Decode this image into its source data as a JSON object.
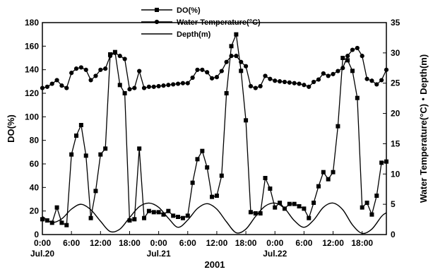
{
  "chart_data": {
    "type": "line",
    "xlabel": "2001",
    "ylabel": "DO(%)",
    "y2label": "Water Temperature(°C)・Depth(m)",
    "ylim": [
      0,
      180
    ],
    "y2lim": [
      0,
      35
    ],
    "yticks": [
      "0",
      "20",
      "40",
      "60",
      "80",
      "100",
      "120",
      "140",
      "160",
      "180"
    ],
    "y2ticks": [
      "0",
      "5",
      "10",
      "15",
      "20",
      "25",
      "30",
      "35"
    ],
    "xlim": [
      0,
      71
    ],
    "xticks": [
      {
        "hour": 0,
        "label": "0:00",
        "sublabel": "Jul.20"
      },
      {
        "hour": 6,
        "label": "6:00",
        "sublabel": ""
      },
      {
        "hour": 12,
        "label": "12:00",
        "sublabel": ""
      },
      {
        "hour": 18,
        "label": "18:00",
        "sublabel": ""
      },
      {
        "hour": 24,
        "label": "0:00",
        "sublabel": "Jul.21"
      },
      {
        "hour": 30,
        "label": "6:00",
        "sublabel": ""
      },
      {
        "hour": 36,
        "label": "12:00",
        "sublabel": ""
      },
      {
        "hour": 42,
        "label": "18:00",
        "sublabel": ""
      },
      {
        "hour": 48,
        "label": "0:00",
        "sublabel": "Jul.22"
      },
      {
        "hour": 54,
        "label": "6:00",
        "sublabel": ""
      },
      {
        "hour": 60,
        "label": "12:00",
        "sublabel": ""
      },
      {
        "hour": 66,
        "label": "18:00",
        "sublabel": ""
      }
    ],
    "legend_position": "top-center",
    "grid": false,
    "series": [
      {
        "name": "DO(%)",
        "axis": "left",
        "marker": "square",
        "x": [
          0,
          1,
          2,
          3,
          4,
          5,
          6,
          7,
          8,
          9,
          10,
          11,
          12,
          13,
          14,
          15,
          16,
          17,
          18,
          19,
          20,
          21,
          22,
          23,
          24,
          25,
          26,
          27,
          28,
          29,
          30,
          31,
          32,
          33,
          34,
          35,
          36,
          37,
          38,
          39,
          40,
          41,
          42,
          43,
          44,
          45,
          46,
          47,
          48,
          49,
          50,
          51,
          52,
          53,
          54,
          55,
          56,
          57,
          58,
          59,
          60,
          61,
          62,
          63,
          64,
          65,
          66,
          67,
          68,
          69,
          70,
          71
        ],
        "values": [
          13,
          12,
          10,
          23,
          10,
          8,
          68,
          84,
          93,
          67,
          14,
          37,
          68,
          73,
          153,
          155,
          127,
          120,
          12,
          13,
          73,
          14,
          20,
          19,
          19,
          17,
          20,
          16,
          15,
          14,
          16,
          44,
          64,
          71,
          57,
          32,
          33,
          50,
          120,
          160,
          170,
          139,
          97,
          19,
          18,
          18,
          48,
          39,
          23,
          27,
          22,
          26,
          26,
          24,
          22,
          14,
          27,
          41,
          53,
          47,
          53,
          92,
          150,
          148,
          139,
          116,
          23,
          27,
          17,
          33,
          61,
          62
        ]
      },
      {
        "name": "Water Temperature(°C)",
        "axis": "right",
        "marker": "circle",
        "x": [
          0,
          1,
          2,
          3,
          4,
          5,
          6,
          7,
          8,
          9,
          10,
          11,
          12,
          13,
          14,
          15,
          16,
          17,
          18,
          19,
          20,
          21,
          22,
          23,
          24,
          25,
          26,
          27,
          28,
          29,
          30,
          31,
          32,
          33,
          34,
          35,
          36,
          37,
          38,
          39,
          40,
          41,
          42,
          43,
          44,
          45,
          46,
          47,
          48,
          49,
          50,
          51,
          52,
          53,
          54,
          55,
          56,
          57,
          58,
          59,
          60,
          61,
          62,
          63,
          64,
          65,
          66,
          67,
          68,
          69,
          70,
          71
        ],
        "values": [
          24.2,
          24.4,
          24.9,
          25.5,
          24.6,
          24.2,
          26.7,
          27.4,
          27.6,
          27.2,
          25.5,
          26.2,
          27.2,
          27.4,
          29.5,
          30.0,
          29.5,
          29.0,
          24.0,
          24.2,
          27.0,
          24.2,
          24.4,
          24.4,
          24.5,
          24.6,
          24.7,
          24.8,
          24.9,
          25.0,
          25.0,
          25.9,
          27.2,
          27.2,
          26.8,
          25.8,
          26.0,
          27.0,
          28.5,
          29.5,
          29.5,
          28.5,
          27.8,
          24.5,
          24.2,
          24.5,
          26.2,
          25.7,
          25.4,
          25.3,
          25.2,
          25.1,
          25.0,
          24.9,
          24.7,
          24.4,
          25.2,
          25.6,
          26.6,
          26.2,
          26.5,
          27.0,
          27.5,
          29.5,
          30.5,
          30.8,
          29.5,
          25.7,
          25.4,
          24.8,
          25.5,
          27.2
        ]
      },
      {
        "name": "Depth(m)",
        "axis": "right",
        "marker": "none",
        "x": [
          0,
          2,
          4,
          6,
          8,
          10,
          12,
          14,
          16,
          18,
          20,
          22,
          24,
          26,
          28,
          30,
          32,
          34,
          36,
          38,
          40,
          42,
          44,
          46,
          48,
          50,
          52,
          54,
          56,
          58,
          60,
          62,
          64,
          66,
          68,
          70,
          71
        ],
        "values": [
          3.0,
          2.0,
          2.6,
          4.2,
          5.0,
          4.1,
          2.2,
          0.5,
          0.9,
          2.8,
          4.6,
          5.2,
          4.5,
          2.7,
          1.2,
          2.4,
          4.3,
          5.1,
          4.2,
          2.1,
          0.3,
          0.9,
          3.0,
          4.7,
          5.2,
          4.3,
          2.3,
          1.2,
          2.4,
          4.5,
          5.2,
          4.1,
          1.6,
          0.2,
          0.9,
          3.0,
          3.6
        ]
      }
    ]
  }
}
